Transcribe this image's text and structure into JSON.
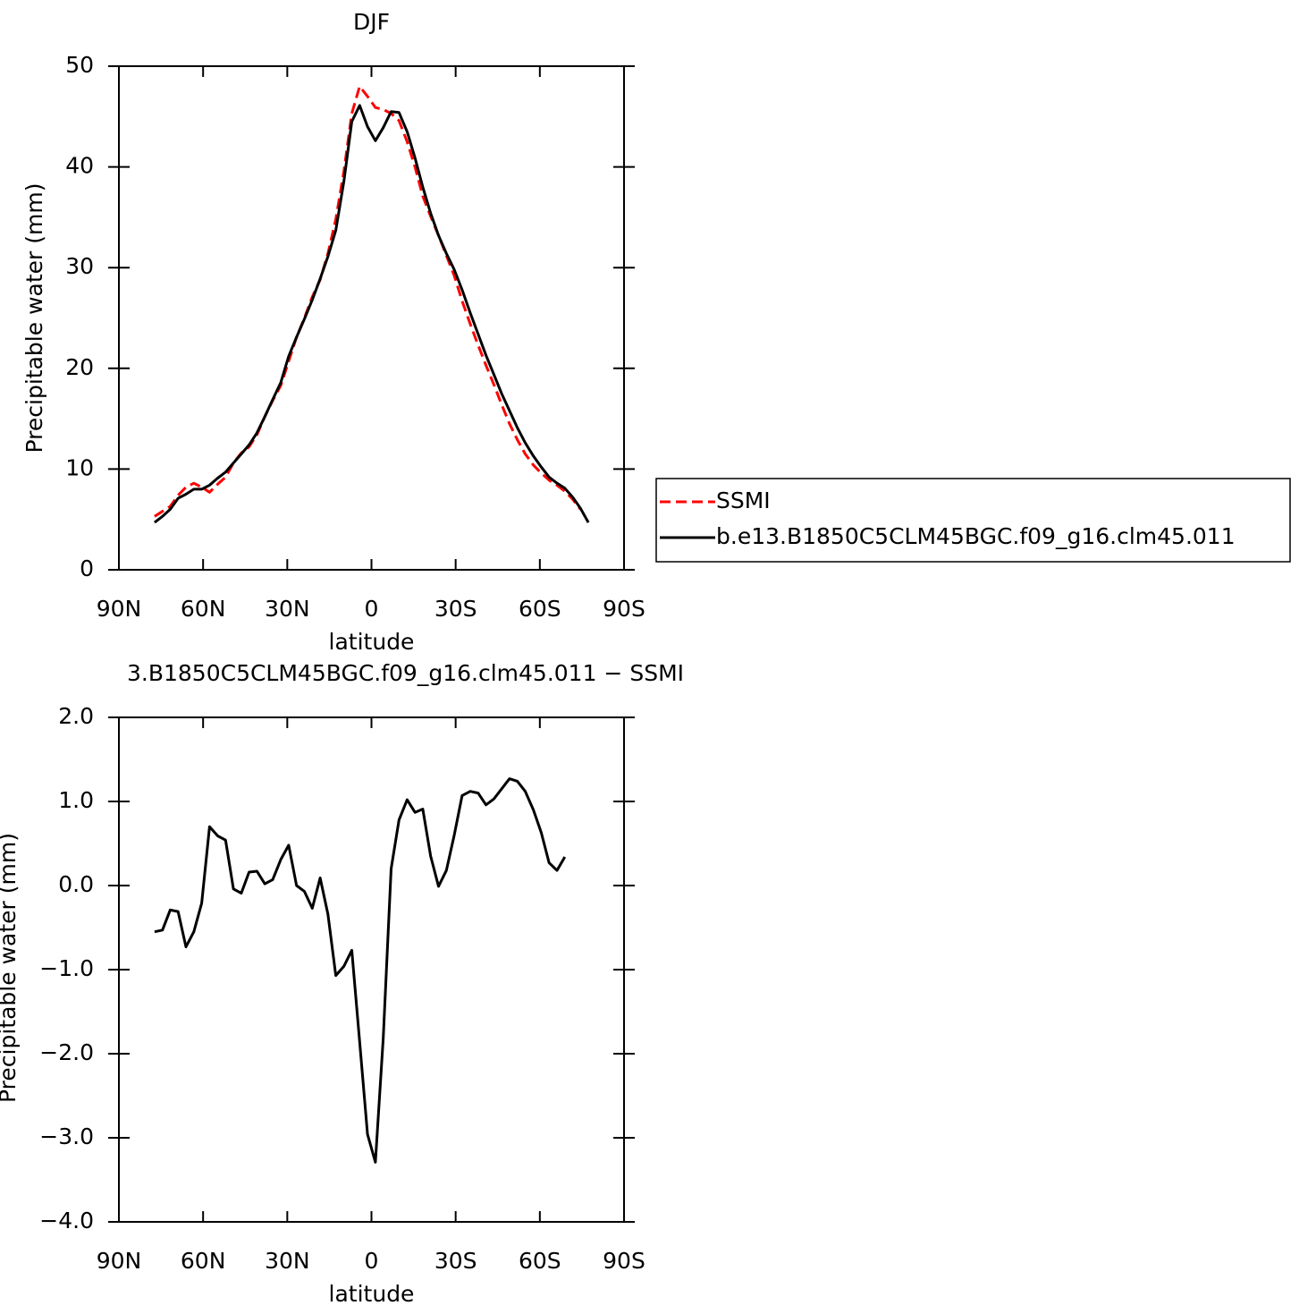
{
  "chart_data": [
    {
      "type": "line",
      "title": "DJF",
      "x_label": "latitude",
      "y_label": "Precipitable water (mm)",
      "x": [
        77.3,
        74.5,
        71.7,
        68.9,
        66.1,
        63.3,
        60.5,
        57.7,
        54.8,
        52.0,
        49.2,
        46.4,
        43.6,
        40.8,
        38.0,
        35.2,
        32.3,
        29.5,
        26.7,
        23.9,
        21.1,
        18.3,
        15.5,
        12.7,
        9.8,
        7.0,
        4.2,
        1.4,
        -1.4,
        -4.2,
        -7.0,
        -9.8,
        -12.7,
        -15.5,
        -18.3,
        -21.1,
        -23.9,
        -26.7,
        -29.5,
        -32.3,
        -35.2,
        -38.0,
        -40.8,
        -43.6,
        -46.4,
        -49.2,
        -52.0,
        -54.8,
        -57.7,
        -60.5,
        -63.3,
        -66.1,
        -68.9,
        -71.7,
        -74.5,
        -77.3
      ],
      "xlim": [
        90,
        -90
      ],
      "xticks": [
        {
          "value": 90,
          "label": "90N"
        },
        {
          "value": 60,
          "label": "60N"
        },
        {
          "value": 30,
          "label": "30N"
        },
        0,
        {
          "value": -30,
          "label": "30S"
        },
        {
          "value": -60,
          "label": "60S"
        },
        {
          "value": -90,
          "label": "90S"
        }
      ],
      "ylim": [
        0,
        50
      ],
      "yticks": [
        0,
        10,
        20,
        30,
        40,
        50
      ],
      "legend": "right",
      "series": [
        {
          "name": "SSMI",
          "color": "#ff0000",
          "dash": "dashed",
          "values": [
            5.3,
            5.8,
            6.3,
            7.4,
            8.2,
            8.6,
            8.2,
            7.7,
            8.5,
            9.2,
            10.6,
            11.6,
            12.2,
            13.4,
            15.2,
            16.8,
            18.3,
            20.7,
            23.1,
            25.0,
            27.1,
            28.8,
            31.4,
            34.8,
            39.6,
            45.3,
            48.0,
            47.0,
            45.9,
            45.7,
            45.3,
            44.6,
            42.5,
            40.0,
            37.1,
            35.1,
            33.2,
            31.2,
            29.2,
            26.7,
            24.4,
            22.3,
            20.3,
            18.4,
            16.4,
            14.5,
            12.9,
            11.5,
            10.4,
            9.6,
            8.9,
            8.4,
            7.8,
            7.0,
            6.0,
            null
          ]
        },
        {
          "name": "b.e13.B1850C5CLM45BGC.f09_g16.clm45.011",
          "color": "#000000",
          "dash": "solid",
          "values": [
            4.7,
            5.3,
            6.0,
            7.1,
            7.5,
            8.0,
            8.0,
            8.4,
            9.1,
            9.7,
            10.6,
            11.5,
            12.4,
            13.6,
            15.2,
            16.9,
            18.6,
            21.2,
            23.1,
            24.9,
            26.8,
            28.9,
            31.1,
            33.7,
            38.6,
            44.5,
            46.1,
            44.0,
            42.6,
            43.9,
            45.5,
            45.4,
            43.5,
            40.9,
            38.0,
            35.4,
            33.2,
            31.4,
            29.8,
            27.8,
            25.5,
            23.4,
            21.3,
            19.4,
            17.5,
            15.8,
            14.1,
            12.6,
            11.3,
            10.2,
            9.2,
            8.6,
            8.1,
            7.2,
            6.1,
            4.7
          ]
        }
      ]
    },
    {
      "type": "line",
      "title": "3.B1850C5CLM45BGC.f09_g16.clm45.011 − SSMI",
      "x_label": "latitude",
      "y_label": "Precipitable water (mm)",
      "x": [
        77.3,
        74.5,
        71.7,
        68.9,
        66.1,
        63.3,
        60.5,
        57.7,
        54.8,
        52.0,
        49.2,
        46.4,
        43.6,
        40.8,
        38.0,
        35.2,
        32.3,
        29.5,
        26.7,
        23.9,
        21.1,
        18.3,
        15.5,
        12.7,
        9.8,
        7.0,
        4.2,
        1.4,
        -1.4,
        -4.2,
        -7.0,
        -9.8,
        -12.7,
        -15.5,
        -18.3,
        -21.1,
        -23.9,
        -26.7,
        -29.5,
        -32.3,
        -35.2,
        -38.0,
        -40.8,
        -43.6,
        -46.4,
        -49.2,
        -52.0,
        -54.8,
        -57.7,
        -60.5,
        -63.3,
        -66.1,
        -68.9
      ],
      "xlim": [
        90,
        -90
      ],
      "xticks": [
        {
          "value": 90,
          "label": "90N"
        },
        {
          "value": 60,
          "label": "60N"
        },
        {
          "value": 30,
          "label": "30N"
        },
        0,
        {
          "value": -30,
          "label": "30S"
        },
        {
          "value": -60,
          "label": "60S"
        },
        {
          "value": -90,
          "label": "90S"
        }
      ],
      "ylim": [
        -4,
        2
      ],
      "yticks": [
        {
          "value": -4,
          "label": "−4.0"
        },
        {
          "value": -3,
          "label": "−3.0"
        },
        {
          "value": -2,
          "label": "−2.0"
        },
        {
          "value": -1,
          "label": "−1.0"
        },
        {
          "value": 0,
          "label": "0.0"
        },
        {
          "value": 1,
          "label": "1.0"
        },
        {
          "value": 2,
          "label": "2.0"
        }
      ],
      "series": [
        {
          "color": "#000000",
          "dash": "solid",
          "values": [
            -0.55,
            -0.53,
            -0.29,
            -0.31,
            -0.73,
            -0.55,
            -0.21,
            0.7,
            0.59,
            0.54,
            -0.04,
            -0.09,
            0.16,
            0.17,
            0.02,
            0.07,
            0.31,
            0.48,
            0.0,
            -0.07,
            -0.27,
            0.09,
            -0.34,
            -1.07,
            -0.96,
            -0.77,
            -1.86,
            -2.96,
            -3.29,
            -1.81,
            0.2,
            0.78,
            1.02,
            0.87,
            0.91,
            0.35,
            -0.01,
            0.18,
            0.6,
            1.07,
            1.12,
            1.1,
            0.96,
            1.03,
            1.15,
            1.27,
            1.24,
            1.12,
            0.9,
            0.63,
            0.27,
            0.18,
            0.34
          ]
        }
      ]
    }
  ]
}
